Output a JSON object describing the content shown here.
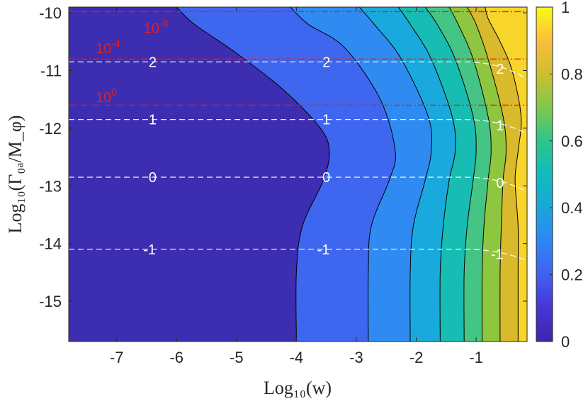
{
  "chart_data": {
    "type": "contour",
    "xlabel": "Log₁₀(w)",
    "ylabel": "Log₁₀(Γ₀ₐ/M_φ)",
    "xlim": [
      -7.8,
      -0.15
    ],
    "ylim": [
      -15.7,
      -9.9
    ],
    "x_ticks": [
      "-7",
      "-6",
      "-5",
      "-4",
      "-3",
      "-2",
      "-1"
    ],
    "x_tick_values": [
      -7,
      -6,
      -5,
      -4,
      -3,
      -2,
      -1
    ],
    "y_ticks": [
      "-10",
      "-11",
      "-12",
      "-13",
      "-14",
      "-15"
    ],
    "y_tick_values": [
      -10,
      -11,
      -12,
      -13,
      -14,
      -15
    ],
    "colorbar": {
      "range": [
        0,
        1
      ],
      "tick_labels": [
        "0",
        "0.2",
        "0.4",
        "0.6",
        "0.8",
        "1"
      ],
      "tick_values": [
        0,
        0.2,
        0.4,
        0.6,
        0.8,
        1
      ]
    },
    "fill_levels": [
      {
        "value": 0.05,
        "color": "#3d2db0"
      },
      {
        "value": 0.15,
        "color": "#4a42d8"
      },
      {
        "value": 0.25,
        "color": "#3f66ef"
      },
      {
        "value": 0.35,
        "color": "#2f8bf2"
      },
      {
        "value": 0.45,
        "color": "#1aa9dc"
      },
      {
        "value": 0.55,
        "color": "#17bcb2"
      },
      {
        "value": 0.65,
        "color": "#45c585"
      },
      {
        "value": 0.75,
        "color": "#8fc63f"
      },
      {
        "value": 0.85,
        "color": "#d8ba2c"
      },
      {
        "value": 0.95,
        "color": "#f8d52b"
      }
    ],
    "contour_boundaries": [
      {
        "level": 0.1,
        "points": [
          [
            -4.0,
            -15.7
          ],
          [
            -4.0,
            -14.5
          ],
          [
            -3.9,
            -13.7
          ],
          [
            -3.55,
            -12.9
          ],
          [
            -3.45,
            -12.4
          ],
          [
            -3.6,
            -12.0
          ],
          [
            -4.2,
            -11.35
          ],
          [
            -5.0,
            -10.7
          ],
          [
            -5.7,
            -10.2
          ],
          [
            -6.0,
            -9.9
          ]
        ]
      },
      {
        "level": 0.2,
        "points": [
          [
            -2.8,
            -15.7
          ],
          [
            -2.8,
            -14.5
          ],
          [
            -2.75,
            -13.7
          ],
          [
            -2.45,
            -12.9
          ],
          [
            -2.35,
            -12.4
          ],
          [
            -2.6,
            -11.5
          ],
          [
            -3.2,
            -10.6
          ],
          [
            -3.8,
            -10.2
          ],
          [
            -4.1,
            -9.9
          ]
        ]
      },
      {
        "level": 0.3,
        "points": [
          [
            -2.1,
            -15.7
          ],
          [
            -2.1,
            -14.5
          ],
          [
            -2.05,
            -13.7
          ],
          [
            -1.85,
            -12.9
          ],
          [
            -1.75,
            -12.4
          ],
          [
            -1.8,
            -11.8
          ],
          [
            -2.25,
            -10.8
          ],
          [
            -2.7,
            -10.2
          ],
          [
            -2.95,
            -9.9
          ]
        ]
      },
      {
        "level": 0.4,
        "points": [
          [
            -1.6,
            -15.7
          ],
          [
            -1.6,
            -14.5
          ],
          [
            -1.55,
            -13.7
          ],
          [
            -1.45,
            -12.9
          ],
          [
            -1.35,
            -12.4
          ],
          [
            -1.4,
            -11.8
          ],
          [
            -1.75,
            -10.8
          ],
          [
            -2.1,
            -10.2
          ],
          [
            -2.3,
            -9.9
          ]
        ]
      },
      {
        "level": 0.5,
        "points": [
          [
            -1.2,
            -15.7
          ],
          [
            -1.2,
            -14.5
          ],
          [
            -1.15,
            -13.7
          ],
          [
            -1.05,
            -12.9
          ],
          [
            -1.0,
            -12.4
          ],
          [
            -1.05,
            -11.8
          ],
          [
            -1.35,
            -10.8
          ],
          [
            -1.65,
            -10.2
          ],
          [
            -1.85,
            -9.9
          ]
        ]
      },
      {
        "level": 0.6,
        "points": [
          [
            -0.9,
            -15.7
          ],
          [
            -0.9,
            -14.5
          ],
          [
            -0.87,
            -13.7
          ],
          [
            -0.8,
            -12.9
          ],
          [
            -0.75,
            -12.4
          ],
          [
            -0.8,
            -11.8
          ],
          [
            -1.05,
            -10.8
          ],
          [
            -1.3,
            -10.2
          ],
          [
            -1.45,
            -9.9
          ]
        ]
      },
      {
        "level": 0.7,
        "points": [
          [
            -0.6,
            -15.7
          ],
          [
            -0.6,
            -14.5
          ],
          [
            -0.58,
            -13.7
          ],
          [
            -0.55,
            -12.9
          ],
          [
            -0.5,
            -12.4
          ],
          [
            -0.55,
            -11.8
          ],
          [
            -0.8,
            -10.8
          ],
          [
            -1.0,
            -10.2
          ],
          [
            -1.15,
            -9.9
          ]
        ]
      },
      {
        "level": 0.8,
        "points": [
          [
            -0.3,
            -15.7
          ],
          [
            -0.3,
            -14.5
          ],
          [
            -0.3,
            -13.7
          ],
          [
            -0.35,
            -12.9
          ],
          [
            -0.3,
            -12.4
          ],
          [
            -0.25,
            -11.8
          ],
          [
            -0.4,
            -11.0
          ],
          [
            -0.6,
            -10.5
          ],
          [
            -0.8,
            -10.1
          ],
          [
            -0.85,
            -9.9
          ]
        ]
      }
    ],
    "white_dashed_contours": [
      {
        "label": "2",
        "y_left": -10.85,
        "y_right": -11.15,
        "label_x": [
          -6.4,
          -3.5,
          -0.6
        ]
      },
      {
        "label": "1",
        "y_left": -11.85,
        "y_right": -12.1,
        "label_x": [
          -6.4,
          -3.5,
          -0.6
        ]
      },
      {
        "label": "0",
        "y_left": -12.85,
        "y_right": -13.1,
        "label_x": [
          -6.4,
          -3.5,
          -0.6
        ]
      },
      {
        "label": "-1",
        "y_left": -14.1,
        "y_right": -14.3,
        "label_x": [
          -6.45,
          -3.55,
          -0.65
        ]
      }
    ],
    "red_dashdot_lines": [
      {
        "label": "10",
        "exponent": "-8",
        "y": -9.98,
        "label_pos": [
          -6.55,
          -10.25
        ]
      },
      {
        "label": "10",
        "exponent": "-4",
        "y": -10.8,
        "label_pos": [
          -7.35,
          -10.6
        ]
      },
      {
        "label": "10",
        "exponent": "0",
        "y": -11.6,
        "label_pos": [
          -7.35,
          -11.45
        ]
      }
    ],
    "colors": {
      "contour_line": "#000000",
      "white_dash": "#ffffff",
      "red_dashdot": "#e0201b",
      "axis": "#262626"
    }
  }
}
